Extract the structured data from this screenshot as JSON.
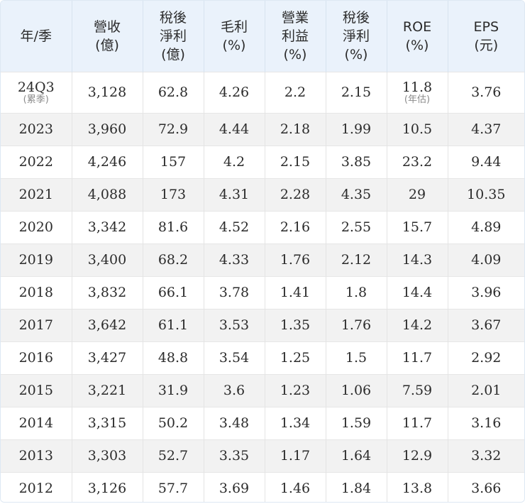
{
  "headers": [
    [
      "年/季"
    ],
    [
      "營收",
      "(億)"
    ],
    [
      "稅後",
      "淨利",
      "(億)"
    ],
    [
      "毛利",
      "(%)"
    ],
    [
      "營業",
      "利益",
      "(%)"
    ],
    [
      "稅後",
      "淨利",
      "(%)"
    ],
    [
      "ROE",
      "(%)"
    ],
    [
      "EPS",
      "(元)"
    ]
  ],
  "rows": [
    {
      "cells": [
        "24Q3",
        "3,128",
        "62.8",
        "4.26",
        "2.2",
        "2.15",
        "11.8",
        "3.76"
      ],
      "notes": [
        "(累季)",
        "",
        "",
        "",
        "",
        "",
        "(年估)",
        ""
      ]
    },
    {
      "cells": [
        "2023",
        "3,960",
        "72.9",
        "4.44",
        "2.18",
        "1.99",
        "10.5",
        "4.37"
      ]
    },
    {
      "cells": [
        "2022",
        "4,246",
        "157",
        "4.2",
        "2.15",
        "3.85",
        "23.2",
        "9.44"
      ]
    },
    {
      "cells": [
        "2021",
        "4,088",
        "173",
        "4.31",
        "2.28",
        "4.35",
        "29",
        "10.35"
      ]
    },
    {
      "cells": [
        "2020",
        "3,342",
        "81.6",
        "4.52",
        "2.16",
        "2.55",
        "15.7",
        "4.89"
      ]
    },
    {
      "cells": [
        "2019",
        "3,400",
        "68.2",
        "4.33",
        "1.76",
        "2.12",
        "14.3",
        "4.09"
      ]
    },
    {
      "cells": [
        "2018",
        "3,832",
        "66.1",
        "3.78",
        "1.41",
        "1.8",
        "14.4",
        "3.96"
      ]
    },
    {
      "cells": [
        "2017",
        "3,642",
        "61.1",
        "3.53",
        "1.35",
        "1.76",
        "14.2",
        "3.67"
      ]
    },
    {
      "cells": [
        "2016",
        "3,427",
        "48.8",
        "3.54",
        "1.25",
        "1.5",
        "11.7",
        "2.92"
      ]
    },
    {
      "cells": [
        "2015",
        "3,221",
        "31.9",
        "3.6",
        "1.23",
        "1.06",
        "7.59",
        "2.01"
      ]
    },
    {
      "cells": [
        "2014",
        "3,315",
        "50.2",
        "3.48",
        "1.34",
        "1.59",
        "11.7",
        "3.16"
      ]
    },
    {
      "cells": [
        "2013",
        "3,303",
        "52.7",
        "3.35",
        "1.17",
        "1.64",
        "12.9",
        "3.32"
      ]
    },
    {
      "cells": [
        "2012",
        "3,126",
        "57.7",
        "3.69",
        "1.46",
        "1.84",
        "13.8",
        "3.66"
      ]
    }
  ],
  "colors": {
    "header_bg": "#eaf2fb",
    "stripe_bg": "#f2f2f2",
    "text": "#2b2b2b",
    "note_text": "#8a8a8a"
  }
}
